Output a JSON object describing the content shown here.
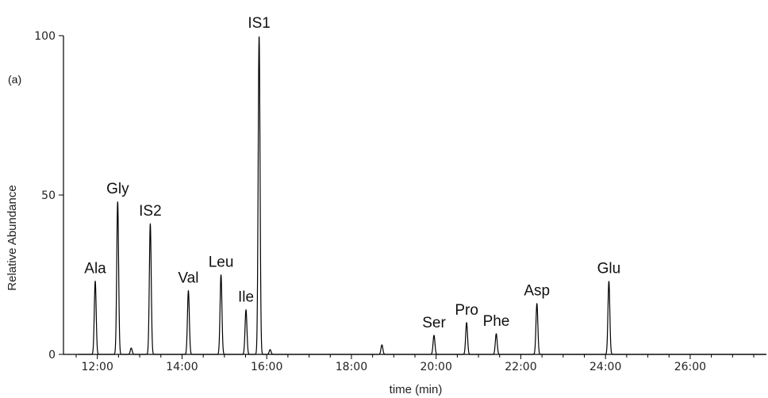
{
  "chart_data": {
    "type": "line",
    "title": "",
    "panel_label": "(a)",
    "xlabel": "time (min)",
    "ylabel": "Relative Abundance",
    "xlim": [
      11.2,
      27.8
    ],
    "ylim": [
      0,
      100
    ],
    "x_ticks": [
      12,
      14,
      16,
      18,
      20,
      22,
      24,
      26
    ],
    "x_tick_labels": [
      "12:00",
      "14:00",
      "16:00",
      "18:00",
      "20:00",
      "22:00",
      "24:00",
      "26:00"
    ],
    "y_ticks": [
      0,
      50,
      100
    ],
    "y_tick_labels": [
      "0",
      "50",
      "100"
    ],
    "grid": false,
    "legend": "none",
    "line_color": "#000000",
    "peaks": [
      {
        "label": "Ala",
        "time": 11.95,
        "abundance": 23
      },
      {
        "label": "Gly",
        "time": 12.48,
        "abundance": 48
      },
      {
        "label": "IS2",
        "time": 13.25,
        "abundance": 41
      },
      {
        "label": "Val",
        "time": 14.15,
        "abundance": 20
      },
      {
        "label": "Leu",
        "time": 14.92,
        "abundance": 25
      },
      {
        "label": "Ile",
        "time": 15.51,
        "abundance": 14
      },
      {
        "label": "IS1",
        "time": 15.82,
        "abundance": 100
      },
      {
        "label": "Ser",
        "time": 19.95,
        "abundance": 6
      },
      {
        "label": "Pro",
        "time": 20.72,
        "abundance": 10
      },
      {
        "label": "Phe",
        "time": 21.42,
        "abundance": 6.5
      },
      {
        "label": "Asp",
        "time": 22.38,
        "abundance": 16
      },
      {
        "label": "Glu",
        "time": 24.08,
        "abundance": 23
      }
    ],
    "minor_peaks": [
      {
        "time": 12.8,
        "abundance": 2
      },
      {
        "time": 16.08,
        "abundance": 1.5
      },
      {
        "time": 18.72,
        "abundance": 3
      }
    ]
  }
}
